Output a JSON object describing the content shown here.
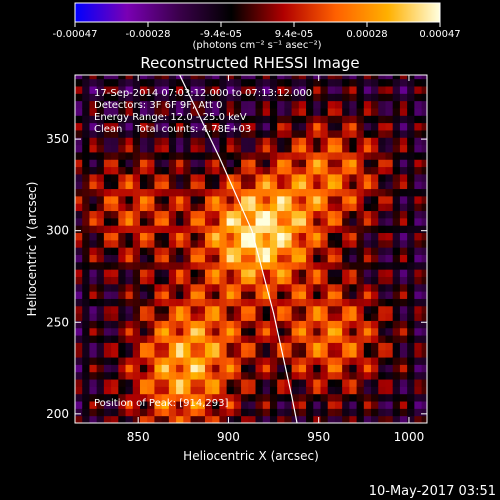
{
  "chart_data": {
    "type": "heatmap",
    "title": "Reconstructed RHESSI Image",
    "xlabel": "Heliocentric X (arcsec)",
    "ylabel": "Heliocentric Y (arcsec)",
    "xlim": [
      815,
      1010
    ],
    "ylim": [
      195,
      385
    ],
    "x_ticks": [
      850,
      900,
      950,
      1000
    ],
    "y_ticks": [
      200,
      250,
      300,
      350
    ],
    "colorbar": {
      "range": [
        -0.00047,
        0.00047
      ],
      "ticks": [
        "-0.00047",
        "-0.00028",
        "-9.4e-05",
        "9.4e-05",
        "0.00028",
        "0.00047"
      ],
      "unit_label": "(photons cm⁻² s⁻¹ asec⁻²)",
      "colors": [
        "#0000ff",
        "#7a00b4",
        "#3a004a",
        "#000000",
        "#b00000",
        "#ff6000",
        "#ffb000",
        "#ffffe0"
      ]
    },
    "annotations": [
      "17-Sep-2014 07:03:12.000 to 07:13:12.000",
      "Detectors: 3F 6F 9F, Att 0",
      "Energy Range: 12.0 - 25.0 keV",
      "Clean    Total counts: 4.78E+03"
    ],
    "peak_label": "Position of Peak: [914,293]",
    "peak": [
      914,
      293
    ],
    "sources": [
      {
        "x": 914,
        "y": 297,
        "amp": 1.0
      },
      {
        "x": 955,
        "y": 240,
        "amp": 0.6
      },
      {
        "x": 880,
        "y": 240,
        "amp": 0.55
      },
      {
        "x": 955,
        "y": 330,
        "amp": 0.55
      },
      {
        "x": 845,
        "y": 310,
        "amp": 0.45
      },
      {
        "x": 870,
        "y": 210,
        "amp": 0.5
      }
    ],
    "limb": [
      [
        873,
        385
      ],
      [
        895,
        340
      ],
      [
        913,
        300
      ],
      [
        925,
        255
      ],
      [
        935,
        210
      ],
      [
        938,
        195
      ]
    ]
  },
  "footer": {
    "timestamp": "10-May-2017 03:51"
  }
}
